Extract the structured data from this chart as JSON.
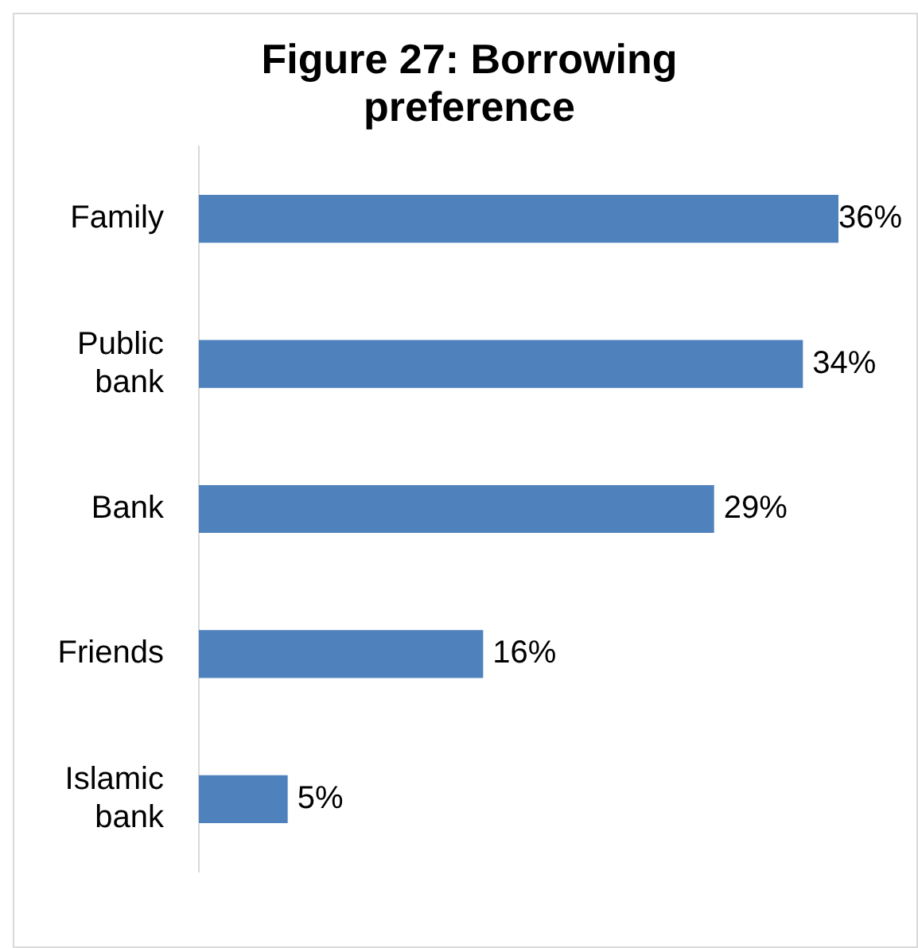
{
  "chart_data": {
    "type": "bar",
    "orientation": "horizontal",
    "title": "Figure 27: Borrowing preference",
    "categories": [
      "Family",
      "Public bank",
      "Bank",
      "Friends",
      "Islamic bank"
    ],
    "values": [
      36,
      34,
      29,
      16,
      5
    ],
    "value_labels": [
      "36%",
      "34%",
      "29%",
      "16%",
      "5%"
    ],
    "color": "#4f81bd",
    "xlim": [
      0,
      36
    ],
    "legend": false,
    "tick_labels": "y"
  }
}
